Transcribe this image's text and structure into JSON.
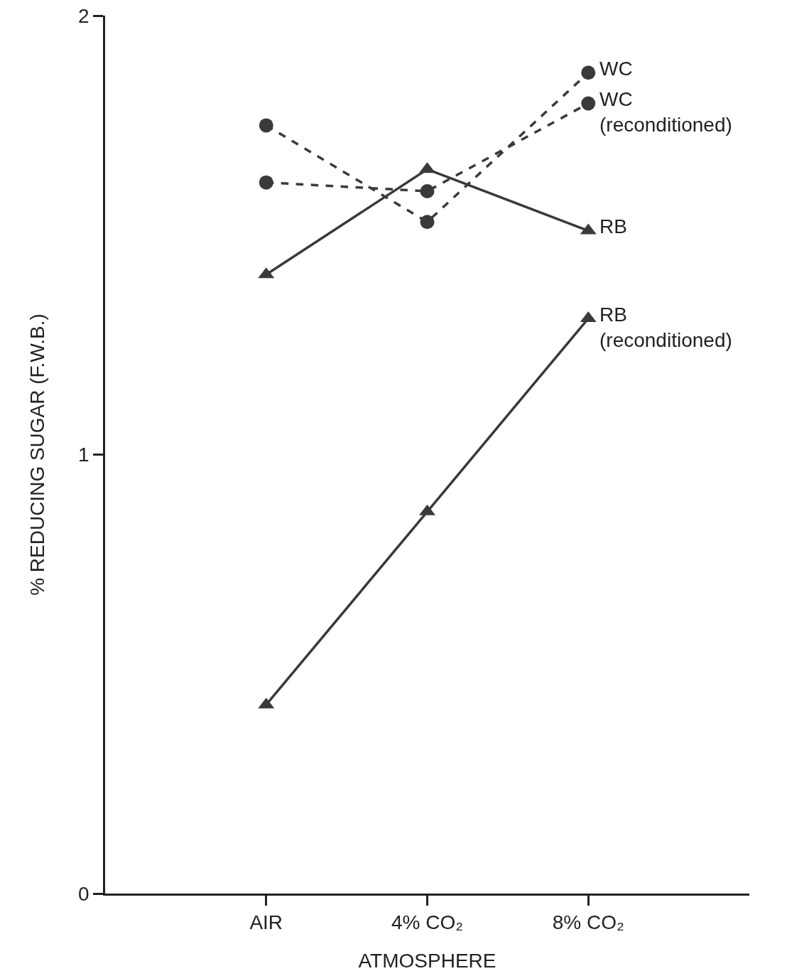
{
  "chart_data": {
    "type": "line",
    "xlabel": "ATMOSPHERE",
    "ylabel": "% REDUCING SUGAR (F.W.B.)",
    "categories": [
      "AIR",
      "4% CO₂",
      "8% CO₂"
    ],
    "series": [
      {
        "name": "WC",
        "color": "#3a3a3a",
        "marker": "circle",
        "line_style": "dashed",
        "values": [
          1.75,
          1.53,
          1.87
        ]
      },
      {
        "name": "WC (reconditioned)",
        "color": "#3a3a3a",
        "marker": "circle",
        "line_style": "dashed",
        "values": [
          1.62,
          1.6,
          1.8
        ]
      },
      {
        "name": "RB",
        "color": "#3a3a3a",
        "marker": "triangle",
        "line_style": "solid",
        "values": [
          1.41,
          1.65,
          1.51
        ]
      },
      {
        "name": "RB (reconditioned)",
        "color": "#3a3a3a",
        "marker": "triangle",
        "line_style": "solid",
        "values": [
          0.43,
          0.87,
          1.31
        ]
      }
    ],
    "ylim": [
      0,
      2
    ],
    "yticks": [
      0,
      1,
      2
    ],
    "grid": false,
    "legend": false
  }
}
